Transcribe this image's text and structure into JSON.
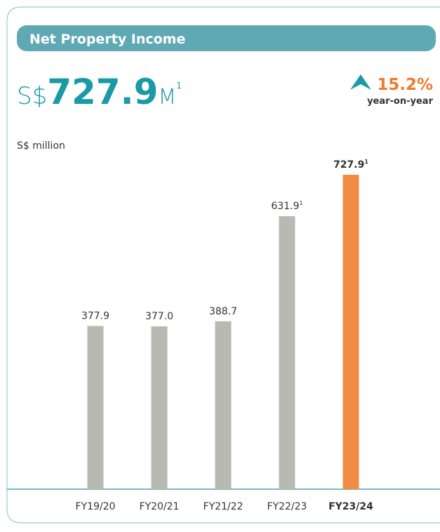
{
  "header": {
    "title": "Net Property Income"
  },
  "headline": {
    "prefix": "S$",
    "value": "727.9",
    "unit": "M",
    "footnote": "1",
    "change": "15.2%",
    "change_label": "year-on-year"
  },
  "chart_data": {
    "type": "bar",
    "y_label": "S$ million",
    "categories": [
      "FY19/20",
      "FY20/21",
      "FY21/22",
      "FY22/23",
      "FY23/24"
    ],
    "values": [
      377.9,
      377.0,
      388.7,
      631.9,
      727.9
    ],
    "value_labels": [
      "377.9",
      "377.0",
      "388.7",
      "631.9",
      "727.9"
    ],
    "footnotes": [
      null,
      null,
      null,
      "1",
      "1"
    ],
    "color": "#b9b9b1",
    "highlight_color": "#f28c45",
    "highlight_index": 4
  }
}
